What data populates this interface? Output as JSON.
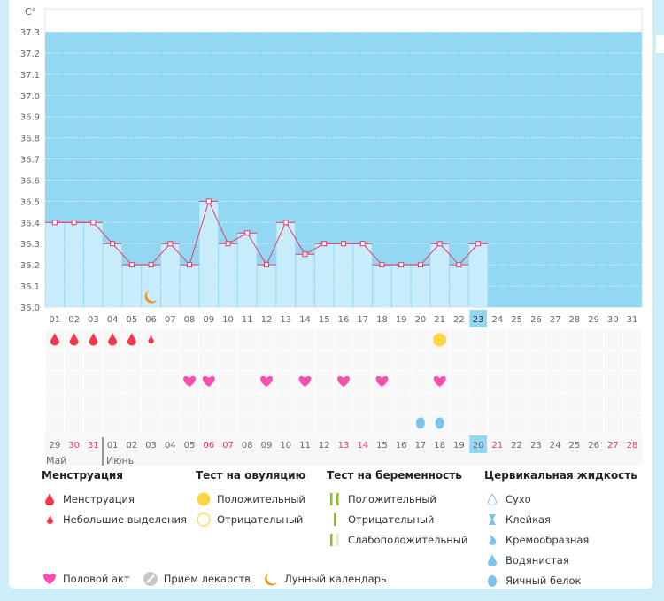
{
  "unit": "C°",
  "y_ticks": [
    "36.0",
    "36.1",
    "36.2",
    "36.3",
    "36.4",
    "36.5",
    "36.6",
    "36.7",
    "36.8",
    "36.9",
    "37.0",
    "37.1",
    "37.2",
    "37.3"
  ],
  "cycle_days": [
    "01",
    "02",
    "03",
    "04",
    "05",
    "06",
    "07",
    "08",
    "09",
    "10",
    "11",
    "12",
    "13",
    "14",
    "15",
    "16",
    "17",
    "18",
    "19",
    "20",
    "21",
    "22",
    "23",
    "24",
    "25",
    "26",
    "27",
    "28",
    "29",
    "30",
    "31"
  ],
  "current_cycle_day": "23",
  "temperatures": [
    36.4,
    36.4,
    36.4,
    36.3,
    36.2,
    36.2,
    36.3,
    36.2,
    36.5,
    36.3,
    36.35,
    36.2,
    36.4,
    36.25,
    36.3,
    36.3,
    36.3,
    36.2,
    36.2,
    36.2,
    36.3,
    36.2,
    36.3
  ],
  "menstruation_days": [
    1,
    2,
    3,
    4,
    5
  ],
  "spotting_days": [
    6
  ],
  "moon_days": [
    6
  ],
  "ovulation_positive_days": [
    21
  ],
  "intercourse_days": [
    8,
    9,
    12,
    14,
    16,
    18,
    21
  ],
  "egg_white_days": [
    20,
    21
  ],
  "calendar_dates": [
    {
      "d": "29",
      "w": false
    },
    {
      "d": "30",
      "w": true
    },
    {
      "d": "31",
      "w": true
    },
    {
      "d": "01",
      "w": false
    },
    {
      "d": "02",
      "w": false
    },
    {
      "d": "03",
      "w": false
    },
    {
      "d": "04",
      "w": false
    },
    {
      "d": "05",
      "w": false
    },
    {
      "d": "06",
      "w": true
    },
    {
      "d": "07",
      "w": true
    },
    {
      "d": "08",
      "w": false
    },
    {
      "d": "09",
      "w": false
    },
    {
      "d": "10",
      "w": false
    },
    {
      "d": "11",
      "w": false
    },
    {
      "d": "12",
      "w": false
    },
    {
      "d": "13",
      "w": true
    },
    {
      "d": "14",
      "w": true
    },
    {
      "d": "15",
      "w": false
    },
    {
      "d": "16",
      "w": false
    },
    {
      "d": "17",
      "w": false
    },
    {
      "d": "18",
      "w": false
    },
    {
      "d": "19",
      "w": false
    },
    {
      "d": "20",
      "w": false
    },
    {
      "d": "21",
      "w": true
    },
    {
      "d": "22",
      "w": false
    },
    {
      "d": "23",
      "w": false
    },
    {
      "d": "24",
      "w": false
    },
    {
      "d": "25",
      "w": false
    },
    {
      "d": "26",
      "w": false
    },
    {
      "d": "27",
      "w": true
    },
    {
      "d": "28",
      "w": true
    }
  ],
  "today_date": "20",
  "months": [
    "Май",
    "Июнь"
  ],
  "colors": {
    "band": "#93d8f2",
    "bar": "#c9ecfb",
    "line": "#e8386b",
    "weekend": "#e8386b",
    "drop": "#f0394a",
    "heart": "#fb4fb0",
    "ovulation": "#fdd545",
    "moon": "#f39016",
    "fluid": "#7cc3f0",
    "test": "#8cc21d"
  },
  "legend": {
    "menstruation": {
      "title": "Менструация",
      "items": [
        "Менструация",
        "Небольшие выделения"
      ]
    },
    "ovulation": {
      "title": "Тест на овуляцию",
      "items": [
        "Положительный",
        "Отрицательный"
      ]
    },
    "pregnancy": {
      "title": "Тест на беременность",
      "items": [
        "Положительный",
        "Отрицательный",
        "Слабоположительный"
      ]
    },
    "cervical": {
      "title": "Цервикальная жидкость",
      "items": [
        "Сухо",
        "Клейкая",
        "Кремообразная",
        "Водянистая",
        "Яичный белок"
      ]
    },
    "other": [
      "Половой акт",
      "Прием лекарств",
      "Лунный календарь"
    ]
  }
}
